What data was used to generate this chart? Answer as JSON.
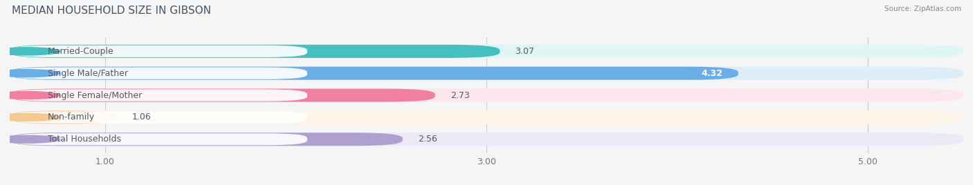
{
  "title": "MEDIAN HOUSEHOLD SIZE IN GIBSON",
  "source": "Source: ZipAtlas.com",
  "categories": [
    "Married-Couple",
    "Single Male/Father",
    "Single Female/Mother",
    "Non-family",
    "Total Households"
  ],
  "values": [
    3.07,
    4.32,
    2.73,
    1.06,
    2.56
  ],
  "bar_colors": [
    "#45bfbf",
    "#6aaee8",
    "#f07fa0",
    "#f5c992",
    "#b0a0d0"
  ],
  "bar_bg_colors": [
    "#e0f5f5",
    "#deeef8",
    "#fce8ec",
    "#fef5e8",
    "#ede8f5"
  ],
  "label_bg_color": "#f7f7f7",
  "xlim": [
    0.5,
    5.5
  ],
  "xticks": [
    1.0,
    3.0,
    5.0
  ],
  "xlabel_fontsize": 9,
  "title_fontsize": 11,
  "label_fontsize": 9,
  "value_fontsize": 9,
  "background_color": "#f5f5f5",
  "text_color": "#555566"
}
